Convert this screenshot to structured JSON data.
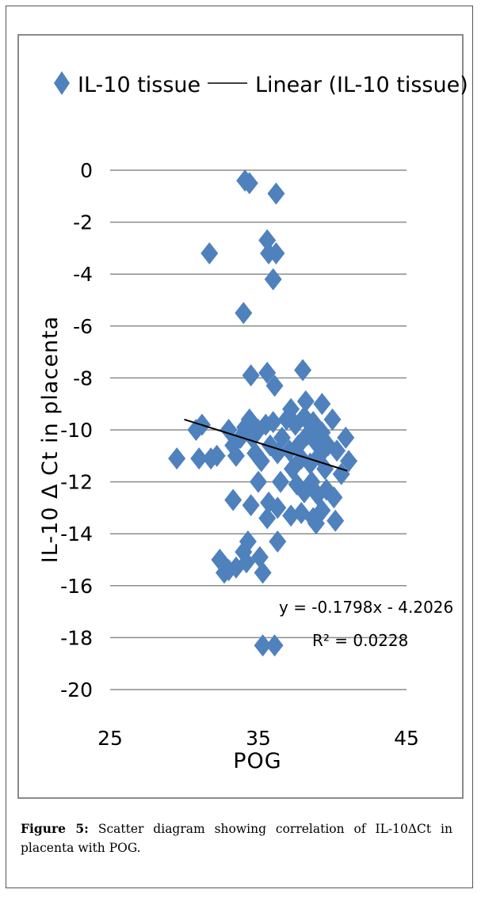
{
  "chart_data": {
    "type": "scatter",
    "legend": {
      "marker_label": "IL-10 tissue",
      "line_label": "Linear (IL-10 tissue)",
      "position": "top"
    },
    "xlabel": "POG",
    "ylabel": "IL-10 Δ Ct in placenta",
    "xlim": [
      25,
      45
    ],
    "ylim": [
      -20,
      0
    ],
    "xticks": [
      "25",
      "35",
      "45"
    ],
    "yticks": [
      "0",
      "-2",
      "-4",
      "-6",
      "-8",
      "-10",
      "-12",
      "-14",
      "-16",
      "-18",
      "-20"
    ],
    "grid": "horizontal",
    "marker_color": "#4F81BD",
    "line_color": "#000000",
    "trendline": {
      "slope": -0.1798,
      "intercept": -4.2026,
      "x_range": [
        30,
        41
      ]
    },
    "equation": "y = -0.1798x - 4.2026",
    "r_squared": "R² = 0.0228",
    "points": [
      [
        34.1,
        -0.4
      ],
      [
        34.4,
        -0.5
      ],
      [
        36.2,
        -0.9
      ],
      [
        31.7,
        -3.2
      ],
      [
        35.6,
        -2.7
      ],
      [
        35.7,
        -3.2
      ],
      [
        36.2,
        -3.2
      ],
      [
        36.0,
        -4.2
      ],
      [
        34.0,
        -5.5
      ],
      [
        34.5,
        -7.9
      ],
      [
        35.6,
        -7.8
      ],
      [
        36.1,
        -8.3
      ],
      [
        38.0,
        -7.7
      ],
      [
        29.5,
        -11.1
      ],
      [
        30.8,
        -10.0
      ],
      [
        31.2,
        -9.8
      ],
      [
        31.0,
        -11.1
      ],
      [
        31.8,
        -11.1
      ],
      [
        32.2,
        -11.0
      ],
      [
        33.0,
        -10.0
      ],
      [
        33.3,
        -10.6
      ],
      [
        33.5,
        -11.0
      ],
      [
        33.8,
        -10.3
      ],
      [
        34.1,
        -9.9
      ],
      [
        34.4,
        -9.6
      ],
      [
        34.6,
        -10.3
      ],
      [
        34.8,
        -10.9
      ],
      [
        35.0,
        -10.0
      ],
      [
        35.2,
        -11.2
      ],
      [
        35.5,
        -9.8
      ],
      [
        35.8,
        -10.6
      ],
      [
        36.0,
        -9.7
      ],
      [
        36.3,
        -10.9
      ],
      [
        36.6,
        -10.3
      ],
      [
        36.9,
        -9.6
      ],
      [
        37.1,
        -10.8
      ],
      [
        37.3,
        -11.5
      ],
      [
        37.5,
        -9.8
      ],
      [
        37.7,
        -10.6
      ],
      [
        37.9,
        -11.1
      ],
      [
        38.1,
        -9.5
      ],
      [
        38.3,
        -10.2
      ],
      [
        38.5,
        -11.3
      ],
      [
        38.7,
        -9.7
      ],
      [
        38.9,
        -10.5
      ],
      [
        39.1,
        -11.0
      ],
      [
        39.3,
        -10.1
      ],
      [
        39.5,
        -11.5
      ],
      [
        39.7,
        -10.6
      ],
      [
        40.0,
        -9.6
      ],
      [
        40.3,
        -10.8
      ],
      [
        40.6,
        -11.7
      ],
      [
        40.9,
        -10.3
      ],
      [
        41.1,
        -11.2
      ],
      [
        37.2,
        -9.2
      ],
      [
        38.2,
        -8.9
      ],
      [
        39.3,
        -9.0
      ],
      [
        37.6,
        -12.1
      ],
      [
        38.1,
        -12.4
      ],
      [
        38.6,
        -12.0
      ],
      [
        39.0,
        -12.5
      ],
      [
        39.6,
        -12.3
      ],
      [
        40.1,
        -12.6
      ],
      [
        37.9,
        -13.2
      ],
      [
        38.7,
        -13.4
      ],
      [
        39.3,
        -13.1
      ],
      [
        40.2,
        -13.5
      ],
      [
        38.9,
        -13.6
      ],
      [
        36.5,
        -12.0
      ],
      [
        35.0,
        -12.0
      ],
      [
        34.5,
        -12.9
      ],
      [
        33.3,
        -12.7
      ],
      [
        35.7,
        -12.8
      ],
      [
        36.3,
        -13.0
      ],
      [
        35.6,
        -13.4
      ],
      [
        37.2,
        -13.3
      ],
      [
        34.3,
        -14.3
      ],
      [
        36.3,
        -14.3
      ],
      [
        35.1,
        -14.9
      ],
      [
        32.4,
        -15.0
      ],
      [
        33.0,
        -15.4
      ],
      [
        33.5,
        -15.3
      ],
      [
        34.2,
        -15.1
      ],
      [
        32.7,
        -15.5
      ],
      [
        35.3,
        -15.5
      ],
      [
        34.0,
        -14.7
      ],
      [
        35.3,
        -18.3
      ],
      [
        36.1,
        -18.3
      ]
    ]
  },
  "caption": {
    "label": "Figure 5:",
    "text": "Scatter diagram showing correlation of IL-10ΔCt in placenta with POG."
  }
}
